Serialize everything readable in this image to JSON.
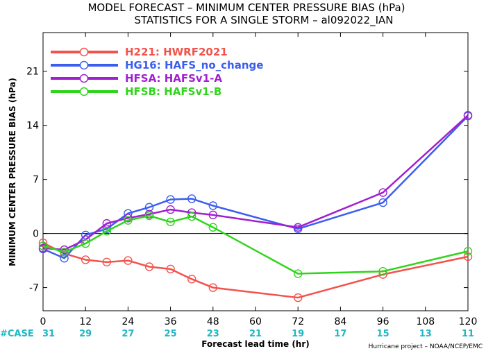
{
  "chart_data": {
    "type": "line",
    "title_line1": "MODEL FORECAST – MINIMUM CENTER PRESSURE BIAS (hPa)",
    "title_line2": "STATISTICS FOR A SINGLE STORM – al092022_IAN",
    "ylabel": "MINIMUM CENTER PRESSURE BIAS (hPa)",
    "xlabel": "Forecast lead time (hr)",
    "xlim": [
      0,
      120
    ],
    "ylim": [
      -10,
      26
    ],
    "xticks": [
      0,
      12,
      24,
      36,
      48,
      60,
      72,
      84,
      96,
      108,
      120
    ],
    "yticks": [
      -7,
      0,
      7,
      14,
      21
    ],
    "cases_label": "#CASE",
    "cases": [
      {
        "x": 0,
        "n": "31"
      },
      {
        "x": 12,
        "n": "29"
      },
      {
        "x": 24,
        "n": "27"
      },
      {
        "x": 36,
        "n": "25"
      },
      {
        "x": 48,
        "n": "23"
      },
      {
        "x": 60,
        "n": "21"
      },
      {
        "x": 72,
        "n": "19"
      },
      {
        "x": 84,
        "n": "17"
      },
      {
        "x": 96,
        "n": "15"
      },
      {
        "x": 108,
        "n": "13"
      },
      {
        "x": 120,
        "n": "11"
      }
    ],
    "series": [
      {
        "name": "H221: HWRF2021",
        "color": "#f2524b",
        "x": [
          0,
          6,
          12,
          18,
          24,
          30,
          36,
          42,
          48,
          72,
          96,
          120
        ],
        "y": [
          -1.2,
          -2.6,
          -3.4,
          -3.7,
          -3.5,
          -4.3,
          -4.6,
          -5.9,
          -7.0,
          -8.3,
          -5.3,
          -3.0
        ]
      },
      {
        "name": "HG16: HAFS_no_change",
        "color": "#3b5ef0",
        "x": [
          0,
          6,
          12,
          18,
          24,
          30,
          36,
          42,
          48,
          72,
          96,
          120
        ],
        "y": [
          -2.0,
          -3.2,
          -0.2,
          0.6,
          2.6,
          3.4,
          4.4,
          4.5,
          3.6,
          0.6,
          4.0,
          15.2
        ]
      },
      {
        "name": "HFSA: HAFSv1-A",
        "color": "#a11fd0",
        "x": [
          0,
          6,
          12,
          18,
          24,
          30,
          36,
          42,
          48,
          72,
          96,
          120
        ],
        "y": [
          -1.9,
          -2.1,
          -0.8,
          1.3,
          2.0,
          2.5,
          3.1,
          2.7,
          2.4,
          0.8,
          5.3,
          15.3
        ]
      },
      {
        "name": "HFSB: HAFSv1-B",
        "color": "#30d41c",
        "x": [
          0,
          6,
          12,
          18,
          24,
          30,
          36,
          42,
          48,
          72,
          96,
          120
        ],
        "y": [
          -1.6,
          -2.4,
          -1.3,
          0.3,
          1.7,
          2.3,
          1.5,
          2.2,
          0.8,
          -5.2,
          -4.9,
          -2.3
        ]
      }
    ],
    "legend_position": "top-left",
    "credit": "Hurricane project – NOAA/NCEP/EMC"
  }
}
